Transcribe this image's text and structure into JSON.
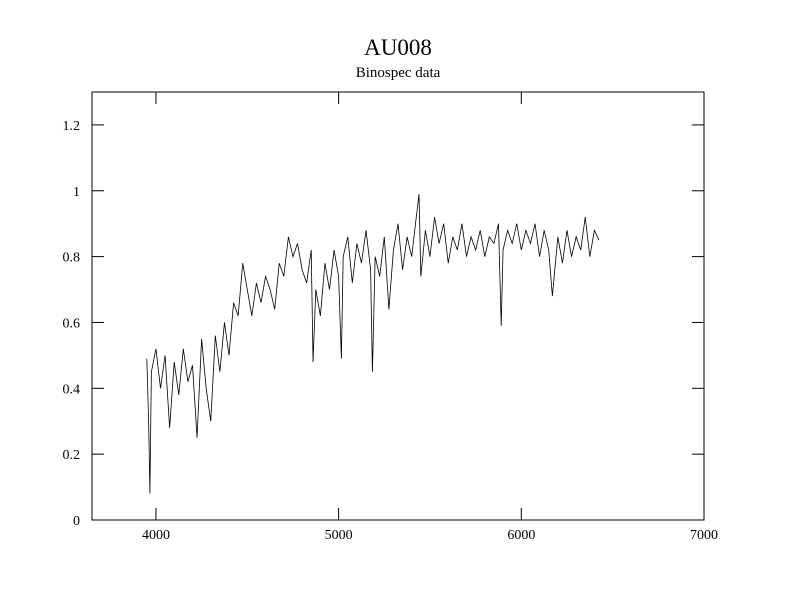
{
  "chart_data": {
    "type": "line",
    "title": "AU008",
    "subtitle": "Binospec data",
    "x": [
      3950,
      3960,
      3967,
      3975,
      4000,
      4025,
      4050,
      4075,
      4100,
      4125,
      4150,
      4175,
      4200,
      4225,
      4250,
      4275,
      4300,
      4325,
      4350,
      4375,
      4400,
      4425,
      4450,
      4475,
      4500,
      4525,
      4550,
      4575,
      4600,
      4625,
      4650,
      4675,
      4700,
      4725,
      4750,
      4775,
      4800,
      4825,
      4850,
      4860,
      4875,
      4900,
      4925,
      4950,
      4975,
      5000,
      5015,
      5025,
      5050,
      5075,
      5100,
      5125,
      5150,
      5175,
      5185,
      5200,
      5225,
      5250,
      5275,
      5300,
      5325,
      5350,
      5375,
      5400,
      5425,
      5440,
      5450,
      5475,
      5500,
      5525,
      5550,
      5575,
      5600,
      5625,
      5650,
      5675,
      5700,
      5725,
      5750,
      5775,
      5800,
      5825,
      5850,
      5875,
      5890,
      5900,
      5925,
      5950,
      5975,
      6000,
      6025,
      6050,
      6075,
      6100,
      6125,
      6150,
      6170,
      6200,
      6225,
      6250,
      6275,
      6300,
      6325,
      6350,
      6375,
      6400,
      6425
    ],
    "series": [
      {
        "color": "#000000",
        "values": [
          0.49,
          0.3,
          0.08,
          0.45,
          0.52,
          0.4,
          0.5,
          0.28,
          0.48,
          0.38,
          0.52,
          0.42,
          0.47,
          0.25,
          0.55,
          0.4,
          0.3,
          0.56,
          0.45,
          0.6,
          0.5,
          0.66,
          0.62,
          0.78,
          0.7,
          0.62,
          0.72,
          0.66,
          0.74,
          0.7,
          0.64,
          0.78,
          0.74,
          0.86,
          0.8,
          0.84,
          0.76,
          0.72,
          0.82,
          0.48,
          0.7,
          0.62,
          0.78,
          0.7,
          0.82,
          0.74,
          0.49,
          0.8,
          0.86,
          0.72,
          0.84,
          0.78,
          0.88,
          0.76,
          0.45,
          0.8,
          0.74,
          0.86,
          0.64,
          0.82,
          0.9,
          0.76,
          0.86,
          0.8,
          0.92,
          0.99,
          0.74,
          0.88,
          0.8,
          0.92,
          0.84,
          0.9,
          0.78,
          0.86,
          0.82,
          0.9,
          0.8,
          0.86,
          0.82,
          0.88,
          0.8,
          0.86,
          0.84,
          0.9,
          0.59,
          0.82,
          0.88,
          0.84,
          0.9,
          0.82,
          0.88,
          0.84,
          0.9,
          0.8,
          0.88,
          0.82,
          0.68,
          0.86,
          0.78,
          0.88,
          0.8,
          0.86,
          0.82,
          0.92,
          0.8,
          0.88,
          0.85
        ]
      }
    ],
    "xlim": [
      3650,
      7000
    ],
    "ylim": [
      0,
      1.3
    ],
    "xticks": [
      4000,
      5000,
      6000,
      7000
    ],
    "yticks": [
      0,
      0.2,
      0.4,
      0.6,
      0.8,
      1,
      1.2
    ]
  }
}
